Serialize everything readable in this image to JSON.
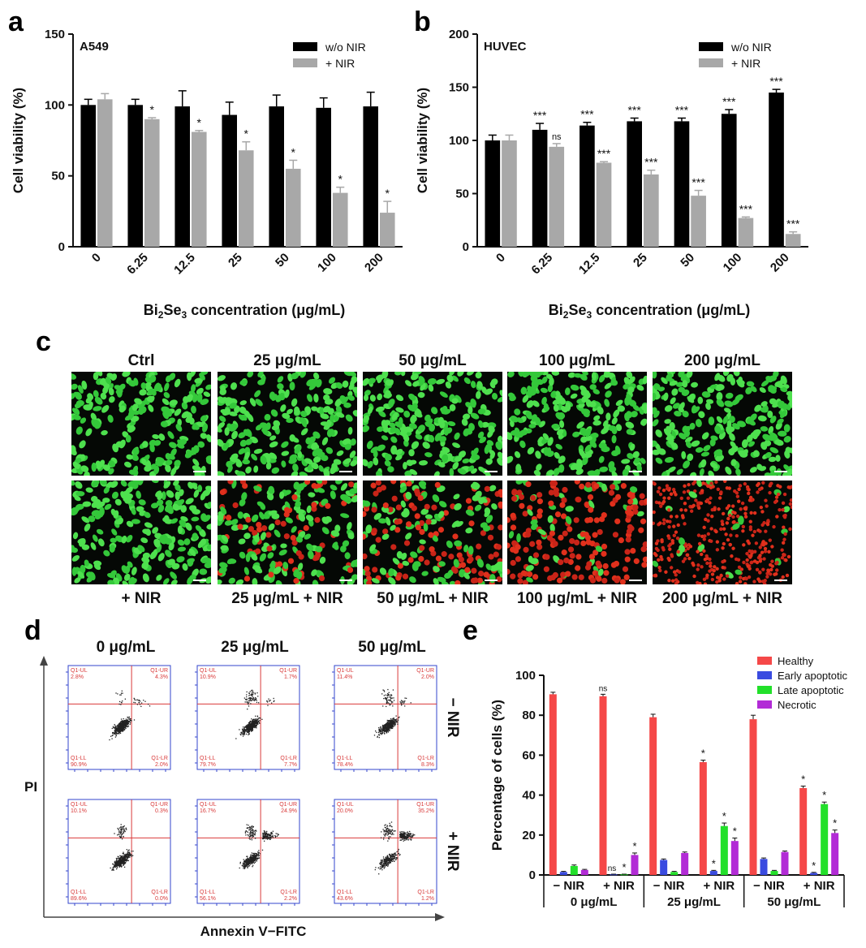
{
  "panels": {
    "a": "a",
    "b": "b",
    "c": "c",
    "d": "d",
    "e": "e"
  },
  "colors": {
    "wo_nir": "#000000",
    "nir": "#a8a8a8",
    "healthy": "#f54848",
    "early": "#3a4be0",
    "late": "#22e02a",
    "necrotic": "#b22bd6",
    "flow_axis": "#3344cc",
    "flow_gate": "#d93a3a"
  },
  "chart_data": [
    {
      "id": "a",
      "type": "bar",
      "title": "A549",
      "xlabel_pre": "Bi",
      "xlabel_sub1": "2",
      "xlabel_mid": "Se",
      "xlabel_sub2": "3",
      "xlabel_post": " concentration (μg/mL)",
      "ylabel": "Cell viability (%)",
      "ylim": [
        0,
        150
      ],
      "yticks": [
        "0",
        "50",
        "100",
        "150"
      ],
      "categories": [
        "0",
        "6.25",
        "12.5",
        "25",
        "50",
        "100",
        "200"
      ],
      "legend": [
        "w/o NIR",
        "+ NIR"
      ],
      "series": [
        {
          "name": "w/o NIR",
          "values": [
            100,
            100,
            99,
            93,
            99,
            98,
            99
          ],
          "errors": [
            4,
            4,
            11,
            9,
            8,
            7,
            10
          ],
          "sig": [
            "",
            "",
            "",
            "",
            "",
            "",
            ""
          ]
        },
        {
          "name": "+ NIR",
          "values": [
            104,
            90,
            81,
            68,
            55,
            38,
            24
          ],
          "errors": [
            4,
            1,
            1,
            6,
            6,
            4,
            8
          ],
          "sig": [
            "",
            "*",
            "*",
            "*",
            "*",
            "*",
            "*"
          ]
        }
      ]
    },
    {
      "id": "b",
      "type": "bar",
      "title": "HUVEC",
      "xlabel_pre": "Bi",
      "xlabel_sub1": "2",
      "xlabel_mid": "Se",
      "xlabel_sub2": "3",
      "xlabel_post": " concentration (μg/mL)",
      "ylabel": "Cell viability (%)",
      "ylim": [
        0,
        200
      ],
      "yticks": [
        "0",
        "50",
        "100",
        "150",
        "200"
      ],
      "categories": [
        "0",
        "6.25",
        "12.5",
        "25",
        "50",
        "100",
        "200"
      ],
      "legend": [
        "w/o NIR",
        "+ NIR"
      ],
      "series": [
        {
          "name": "w/o NIR",
          "values": [
            100,
            110,
            114,
            118,
            118,
            125,
            145
          ],
          "errors": [
            5,
            6,
            3,
            3,
            3,
            4,
            3
          ],
          "sig": [
            "",
            "***",
            "***",
            "***",
            "***",
            "***",
            "***"
          ]
        },
        {
          "name": "+ NIR",
          "values": [
            100,
            94,
            79,
            68,
            48,
            27,
            12
          ],
          "errors": [
            5,
            3,
            1,
            4,
            5,
            1,
            2
          ],
          "sig": [
            "",
            "ns",
            "***",
            "***",
            "***",
            "***",
            "***"
          ]
        }
      ]
    },
    {
      "id": "e",
      "type": "bar",
      "ylabel": "Percentage of cells (%)",
      "ylim": [
        0,
        100
      ],
      "yticks": [
        "0",
        "20",
        "40",
        "60",
        "80",
        "100"
      ],
      "categories": [
        "− NIR",
        "+ NIR",
        "− NIR",
        "+ NIR",
        "− NIR",
        "+ NIR"
      ],
      "groups": [
        "0 μg/mL",
        "25 μg/mL",
        "50 μg/mL"
      ],
      "legend": [
        "Healthy",
        "Early apoptotic",
        "Late apoptotic",
        "Necrotic"
      ],
      "series": [
        {
          "name": "Healthy",
          "values": [
            90.5,
            89.5,
            79,
            56.5,
            78,
            43.5
          ],
          "errors": [
            1,
            1,
            1.5,
            1,
            2,
            1
          ],
          "sig": [
            "",
            "ns",
            "",
            "*",
            "",
            "*"
          ]
        },
        {
          "name": "Early apoptotic",
          "values": [
            1.5,
            0.3,
            7.5,
            2,
            8,
            1
          ],
          "errors": [
            0.3,
            0.1,
            0.5,
            0.3,
            0.5,
            0.3
          ],
          "sig": [
            "",
            "ns",
            "",
            "*",
            "",
            "*"
          ]
        },
        {
          "name": "Late apoptotic",
          "values": [
            4.5,
            0.3,
            1.5,
            24.5,
            2,
            35.5
          ],
          "errors": [
            0.5,
            0.1,
            0.3,
            1.5,
            0.3,
            1
          ],
          "sig": [
            "",
            "*",
            "",
            "*",
            "",
            "*"
          ]
        },
        {
          "name": "Necrotic",
          "values": [
            2.5,
            10,
            11,
            17,
            11.5,
            21
          ],
          "errors": [
            0.3,
            1,
            0.5,
            1.5,
            0.5,
            1.5
          ],
          "sig": [
            "",
            "*",
            "",
            "*",
            "",
            "*"
          ]
        }
      ]
    }
  ],
  "panel_c": {
    "top_labels": [
      "Ctrl",
      "25 μg/mL",
      "50 μg/mL",
      "100 μg/mL",
      "200 μg/mL"
    ],
    "bottom_labels": [
      "+ NIR",
      "25 μg/mL + NIR",
      "50 μg/mL + NIR",
      "100 μg/mL + NIR",
      "200 μg/mL + NIR"
    ],
    "red_fraction_top": [
      0,
      0,
      0,
      0,
      0
    ],
    "red_fraction_bottom": [
      0,
      0.3,
      0.5,
      0.8,
      0.97
    ]
  },
  "panel_d": {
    "col_labels": [
      "0 μg/mL",
      "25 μg/mL",
      "50 μg/mL"
    ],
    "row_labels": [
      "− NIR",
      "+ NIR"
    ],
    "ylabel": "PI",
    "xlabel": "Annexin V−FITC",
    "quad_names": [
      "Q1-UL",
      "Q1-UR",
      "Q1-LL",
      "Q1-LR"
    ],
    "plots": [
      {
        "UL": "2.8%",
        "UR": "4.3%",
        "LL": "90.9%",
        "LR": "2.0%"
      },
      {
        "UL": "10.9%",
        "UR": "1.7%",
        "LL": "79.7%",
        "LR": "7.7%"
      },
      {
        "UL": "11.4%",
        "UR": "2.0%",
        "LL": "78.4%",
        "LR": "8.3%"
      },
      {
        "UL": "10.1%",
        "UR": "0.3%",
        "LL": "89.6%",
        "LR": "0.0%"
      },
      {
        "UL": "16.7%",
        "UR": "24.9%",
        "LL": "56.1%",
        "LR": "2.2%"
      },
      {
        "UL": "20.0%",
        "UR": "35.2%",
        "LL": "43.6%",
        "LR": "1.2%"
      }
    ]
  }
}
